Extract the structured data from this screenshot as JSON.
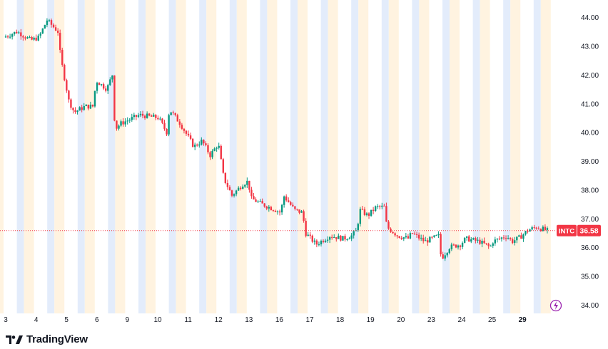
{
  "chart_data": {
    "type": "candlestick",
    "ticker": "INTC",
    "last_price": "36.58",
    "ylim": [
      33.7,
      44.6
    ],
    "y_ticks": [
      "44.00",
      "43.00",
      "42.00",
      "41.00",
      "40.00",
      "39.00",
      "38.00",
      "37.00",
      "36.00",
      "35.00",
      "34.00"
    ],
    "x_ticks": [
      "3",
      "4",
      "5",
      "6",
      "9",
      "10",
      "11",
      "12",
      "13",
      "16",
      "17",
      "18",
      "19",
      "20",
      "23",
      "24",
      "25",
      "29"
    ],
    "colors": {
      "up": "#089981",
      "down": "#f23645",
      "premarket": "#fff3e0",
      "afterhours": "#e3ecfb",
      "last_price": "#f23645"
    },
    "grid": false,
    "price_path": [
      [
        0,
        43.3
      ],
      [
        0.5,
        43.5
      ],
      [
        1,
        43.2
      ],
      [
        1.3,
        43.3
      ],
      [
        1.6,
        43.9
      ],
      [
        2,
        43.5
      ],
      [
        2.1,
        42.6
      ],
      [
        2.4,
        41.1
      ],
      [
        2.6,
        40.7
      ],
      [
        3,
        40.9
      ],
      [
        3.3,
        40.9
      ],
      [
        3.4,
        41.8
      ],
      [
        3.8,
        41.5
      ],
      [
        4,
        42.0
      ],
      [
        4.1,
        40.1
      ],
      [
        4.3,
        40.3
      ],
      [
        5,
        40.6
      ],
      [
        5.7,
        40.5
      ],
      [
        6,
        40.0
      ],
      [
        6.1,
        40.8
      ],
      [
        6.5,
        40.3
      ],
      [
        7,
        39.5
      ],
      [
        7.3,
        39.7
      ],
      [
        7.6,
        39.2
      ],
      [
        7.9,
        39.6
      ],
      [
        8.1,
        38.4
      ],
      [
        8.4,
        37.8
      ],
      [
        8.8,
        38.2
      ],
      [
        9,
        38.3
      ],
      [
        9.1,
        37.7
      ],
      [
        9.5,
        37.5
      ],
      [
        10,
        37.3
      ],
      [
        10.2,
        37.2
      ],
      [
        10.3,
        37.8
      ],
      [
        10.7,
        37.3
      ],
      [
        11,
        37.2
      ],
      [
        11.1,
        36.5
      ],
      [
        11.5,
        36.1
      ],
      [
        12,
        36.4
      ],
      [
        12.5,
        36.3
      ],
      [
        12.8,
        36.4
      ],
      [
        13,
        36.6
      ],
      [
        13.1,
        37.3
      ],
      [
        13.4,
        37.1
      ],
      [
        13.7,
        37.4
      ],
      [
        14,
        37.4
      ],
      [
        14.1,
        36.7
      ],
      [
        14.5,
        36.4
      ],
      [
        14.9,
        36.3
      ],
      [
        15,
        36.5
      ],
      [
        15.5,
        36.2
      ],
      [
        16,
        36.4
      ],
      [
        16.1,
        35.6
      ],
      [
        16.4,
        36.0
      ],
      [
        16.8,
        36.1
      ],
      [
        17,
        36.3
      ],
      [
        17.5,
        36.2
      ],
      [
        17.9,
        36.0
      ],
      [
        18,
        36.2
      ],
      [
        18.5,
        36.4
      ],
      [
        18.7,
        36.2
      ],
      [
        19,
        36.35
      ],
      [
        19.3,
        36.6
      ],
      [
        19.6,
        36.7
      ],
      [
        20,
        36.58
      ]
    ],
    "footer_brand": "TradingView"
  }
}
